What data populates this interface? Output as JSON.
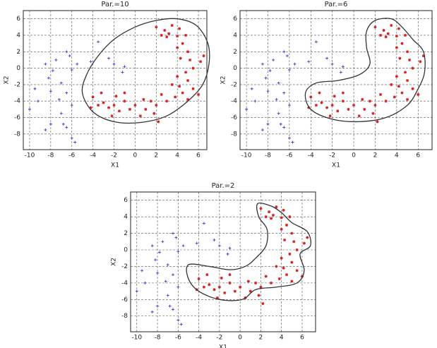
{
  "chart_data": [
    {
      "type": "scatter",
      "title": "Par.=10",
      "xlabel": "X1",
      "ylabel": "X2",
      "xlim": [
        -10.6,
        6.8
      ],
      "ylim": [
        -9.9,
        7
      ],
      "xticks": [
        -10,
        -8,
        -6,
        -4,
        -2,
        0,
        2,
        4,
        6
      ],
      "yticks": [
        -8,
        -6,
        -4,
        -2,
        0,
        2,
        4,
        6
      ],
      "grid": true,
      "series": [
        {
          "color": "#d62020",
          "marker": "star",
          "x": [
            2,
            2.5,
            3,
            3.5,
            4,
            4.2,
            3.2,
            2.8,
            4.5,
            5,
            5.2,
            4,
            4.3,
            5.5,
            4.8,
            4,
            5,
            4.2,
            5.5,
            4.5,
            3.8,
            5,
            6.2,
            6.5,
            3,
            2,
            1.5,
            1,
            0,
            -0.5,
            -1,
            -1.5,
            -2,
            -2.5,
            -3,
            -3.5,
            -4,
            -4.2,
            -2.2,
            0.5,
            1.8,
            2.5,
            -1,
            3.5,
            4.8,
            6,
            2.2,
            -3.2,
            0.8,
            -1.8
          ],
          "y": [
            5,
            4,
            3.8,
            5.2,
            3.9,
            4.8,
            4.2,
            4.6,
            3,
            2,
            1,
            2.5,
            1.2,
            0,
            -0.5,
            -1,
            -1.5,
            -2.2,
            -2.5,
            -3,
            -3.5,
            -3.8,
            0.8,
            1.5,
            -4,
            -4.5,
            -4,
            -5,
            -4.5,
            -5,
            -4,
            -5.2,
            -4.5,
            -4.8,
            -4.2,
            -4.5,
            -3.5,
            -4.8,
            -5.8,
            -5.8,
            -5.5,
            -3.2,
            -3,
            -2,
            4,
            -3.2,
            -6.5,
            -3,
            -3.8,
            -3.4
          ]
        },
        {
          "color": "#3a3ad0",
          "marker": "plus",
          "x": [
            -10,
            -9.2,
            -8,
            -8.2,
            -7.8,
            -8.5,
            -7.5,
            -6.5,
            -6.2,
            -5.5,
            -6,
            -7,
            -6.5,
            -7.2,
            -6,
            -7,
            -6.8,
            -6.5,
            -8.5,
            -6,
            -5.7,
            -8,
            -3.5,
            -4.2,
            -2,
            -2.5,
            -1,
            -1.2,
            -9.5
          ],
          "y": [
            -5,
            -4,
            -2.8,
            -1.2,
            -0.3,
            0.5,
            1,
            2,
            1.5,
            0.5,
            -0.2,
            -1.8,
            -3,
            -3.8,
            -4.5,
            -5.5,
            -6.8,
            -7.2,
            -7.5,
            -8.5,
            -9,
            -6.8,
            3.2,
            0.8,
            0.5,
            1.2,
            0.2,
            -0.5,
            -2.5
          ]
        }
      ],
      "boundary": {
        "color": "#333333",
        "x": [
          -5,
          -4.6,
          -3.5,
          -2,
          0,
          2,
          4,
          5.8,
          6.9,
          7,
          6.4,
          5,
          3,
          0.5,
          -2,
          -4
        ],
        "y": [
          -3,
          -0.8,
          1.5,
          3.5,
          5,
          5.8,
          6,
          5.2,
          3,
          0.5,
          -2,
          -4,
          -5.8,
          -6.6,
          -6.5,
          -5.3
        ]
      }
    },
    {
      "type": "scatter",
      "title": "Par.=6",
      "xlabel": "X1",
      "ylabel": "X2",
      "xlim": [
        -10.6,
        7.3
      ],
      "ylim": [
        -9.9,
        7
      ],
      "xticks": [
        -10,
        -8,
        -6,
        -4,
        -2,
        0,
        2,
        4,
        6
      ],
      "yticks": [
        -8,
        -6,
        -4,
        -2,
        0,
        2,
        4,
        6
      ],
      "grid": true,
      "series": [
        {
          "color": "#d62020",
          "marker": "star",
          "x": [
            2,
            2.5,
            3,
            3.5,
            4,
            4.2,
            3.2,
            2.8,
            4.5,
            5,
            5.2,
            4,
            4.3,
            5.5,
            4.8,
            4,
            5,
            4.2,
            5.5,
            4.5,
            3.8,
            5,
            6.2,
            6.5,
            3,
            2,
            1.5,
            1,
            0,
            -0.5,
            -1,
            -1.5,
            -2,
            -2.5,
            -3,
            -3.5,
            -4,
            -4.2,
            -2.2,
            0.5,
            1.8,
            2.5,
            -1,
            3.5,
            4.8,
            6,
            2.2,
            -3.2,
            0.8,
            -1.8
          ],
          "y": [
            5,
            4,
            3.8,
            5.2,
            3.9,
            4.8,
            4.2,
            4.6,
            3,
            2,
            1,
            2.5,
            1.2,
            0,
            -0.5,
            -1,
            -1.5,
            -2.2,
            -2.5,
            -3,
            -3.5,
            -3.8,
            0.8,
            1.5,
            -4,
            -4.5,
            -4,
            -5,
            -4.5,
            -5,
            -4,
            -5.2,
            -4.5,
            -4.8,
            -4.2,
            -4.5,
            -3.5,
            -4.8,
            -5.8,
            -5.8,
            -5.5,
            -3.2,
            -3,
            -2,
            4,
            -3.2,
            -6.5,
            -3,
            -3.8,
            -3.4
          ]
        },
        {
          "color": "#3a3ad0",
          "marker": "plus",
          "x": [
            -10,
            -9.2,
            -8,
            -8.2,
            -7.8,
            -8.5,
            -7.5,
            -6.5,
            -6.2,
            -5.5,
            -6,
            -7,
            -6.5,
            -7.2,
            -6,
            -7,
            -6.8,
            -6.5,
            -8.5,
            -6,
            -5.7,
            -8,
            -3.5,
            -4.2,
            -2,
            -2.5,
            -1,
            -1.2,
            -9.5
          ],
          "y": [
            -5,
            -4,
            -2.8,
            -1.2,
            -0.3,
            0.5,
            1,
            2,
            1.5,
            0.5,
            -0.2,
            -1.8,
            -3,
            -3.8,
            -4.5,
            -5.5,
            -6.8,
            -7.2,
            -7.5,
            -8.5,
            -9,
            -6.8,
            3.2,
            0.8,
            0.5,
            1.2,
            0.2,
            -0.5,
            -2.5
          ]
        }
      ],
      "boundary": {
        "color": "#333333",
        "x": [
          -4.5,
          -3.5,
          -1.5,
          0.5,
          1.5,
          1.2,
          1.2,
          2,
          3.5,
          4.5,
          5.5,
          6.5,
          6.6,
          6,
          5,
          3,
          0.5,
          -2,
          -4
        ],
        "y": [
          -3,
          -1.8,
          -1.5,
          -0.8,
          0.5,
          2.5,
          4.5,
          5.8,
          6,
          5,
          3.5,
          2,
          -0.5,
          -2.5,
          -4.5,
          -6,
          -6.5,
          -6.2,
          -5
        ]
      }
    },
    {
      "type": "scatter",
      "title": "Par.=2",
      "xlabel": "X1",
      "ylabel": "X2",
      "xlim": [
        -10.6,
        7.3
      ],
      "ylim": [
        -9.9,
        7
      ],
      "xticks": [
        -10,
        -8,
        -6,
        -4,
        -2,
        0,
        2,
        4,
        6
      ],
      "yticks": [
        -8,
        -6,
        -4,
        -2,
        0,
        2,
        4,
        6
      ],
      "grid": true,
      "series": [
        {
          "color": "#d62020",
          "marker": "star",
          "x": [
            2,
            2.5,
            3,
            3.5,
            4,
            4.2,
            3.2,
            2.8,
            4.5,
            5,
            5.2,
            4,
            4.3,
            5.5,
            4.8,
            4,
            5,
            4.2,
            5.5,
            4.5,
            3.8,
            5,
            6.2,
            6.5,
            3,
            2,
            1.5,
            1,
            0,
            -0.5,
            -1,
            -1.5,
            -2,
            -2.5,
            -3,
            -3.5,
            -4,
            -4.2,
            -2.2,
            0.5,
            1.8,
            2.5,
            -1,
            3.5,
            4.8,
            6,
            2.2,
            -3.2,
            0.8,
            -1.8
          ],
          "y": [
            5,
            4,
            3.8,
            5.2,
            3.9,
            4.8,
            4.2,
            4.6,
            3,
            2,
            1,
            2.5,
            1.2,
            0,
            -0.5,
            -1,
            -1.5,
            -2.2,
            -2.5,
            -3,
            -3.5,
            -3.8,
            0.8,
            1.5,
            -4,
            -4.5,
            -4,
            -5,
            -4.5,
            -5,
            -4,
            -5.2,
            -4.5,
            -4.8,
            -4.2,
            -4.5,
            -3.5,
            -4.8,
            -5.8,
            -5.8,
            -5.5,
            -3.2,
            -3,
            -2,
            4,
            -3.2,
            -6.5,
            -3,
            -3.8,
            -3.4
          ]
        },
        {
          "color": "#3a3ad0",
          "marker": "plus",
          "x": [
            -10,
            -9.2,
            -8,
            -8.2,
            -7.8,
            -8.5,
            -7.5,
            -6.5,
            -6.2,
            -5.5,
            -6,
            -7,
            -6.5,
            -7.2,
            -6,
            -7,
            -6.8,
            -6.5,
            -8.5,
            -6,
            -5.7,
            -8,
            -3.5,
            -4.2,
            -2,
            -2.5,
            -1,
            -1.2,
            -9.5
          ],
          "y": [
            -5,
            -4,
            -2.8,
            -1.2,
            -0.3,
            0.5,
            1,
            2,
            1.5,
            0.5,
            -0.2,
            -1.8,
            -3,
            -3.8,
            -4.5,
            -5.5,
            -6.8,
            -7.2,
            -7.5,
            -8.5,
            -9,
            -6.8,
            3.2,
            0.8,
            0.5,
            1.2,
            0.2,
            -0.5,
            -2.5
          ]
        }
      ],
      "boundary": {
        "color": "#333333",
        "x": [
          -5,
          -3,
          -1,
          0.5,
          1.5,
          2.5,
          2.6,
          1.8,
          1.7,
          3,
          4,
          5,
          6.5,
          6.8,
          5.8,
          6.2,
          5.5,
          3.5,
          1.5,
          0.2,
          -2,
          -4,
          -5
        ],
        "y": [
          -1.8,
          -2,
          -2.4,
          -2,
          -1,
          0.5,
          2.5,
          4,
          5.6,
          5.3,
          4.5,
          3.3,
          2.2,
          0.5,
          -0.5,
          -2.5,
          -4,
          -4.5,
          -4.8,
          -6,
          -6,
          -5,
          -3.5
        ]
      }
    }
  ]
}
